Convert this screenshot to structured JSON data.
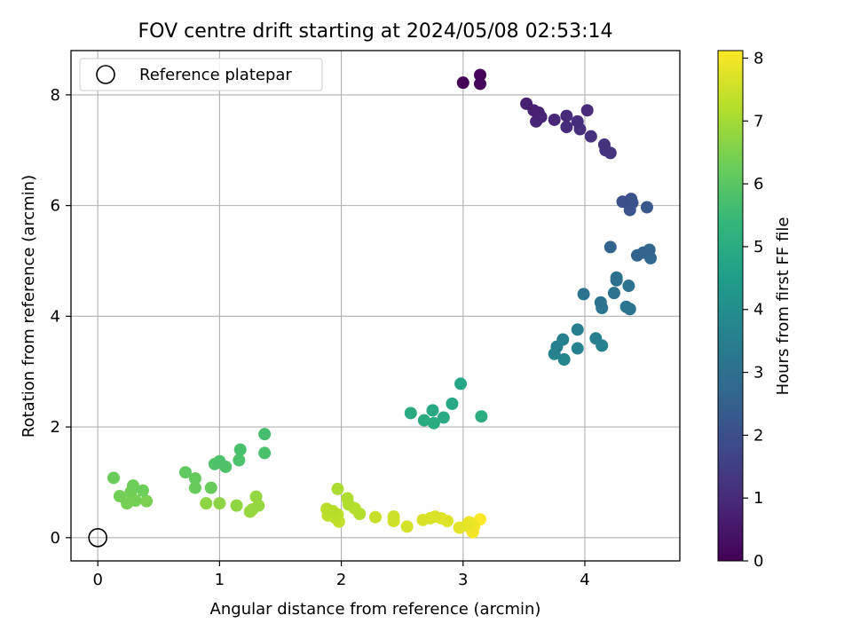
{
  "chart_data": {
    "type": "scatter",
    "title": "FOV centre drift starting at 2024/05/08 02:53:14",
    "xlabel": "Angular distance from reference (arcmin)",
    "ylabel": "Rotation from reference (arcmin)",
    "xlim": [
      -0.22,
      4.78
    ],
    "ylim": [
      -0.42,
      8.8
    ],
    "xticks": [
      0,
      1,
      2,
      3,
      4
    ],
    "yticks": [
      0,
      2,
      4,
      6,
      8
    ],
    "grid": true,
    "legend": {
      "placement": "top-left",
      "entries": [
        "Reference platepar"
      ]
    },
    "reference_point": {
      "x": 0,
      "y": 0
    },
    "colorbar": {
      "label": "Hours from first FF file",
      "range": [
        0,
        8.12
      ],
      "ticks": [
        0,
        1,
        2,
        3,
        4,
        5,
        6,
        7,
        8
      ],
      "colormap": "viridis"
    },
    "colormap_stops": [
      "#440154",
      "#482878",
      "#3e4989",
      "#31688e",
      "#26828e",
      "#1f9e89",
      "#35b779",
      "#6ece58",
      "#b5de2b",
      "#fde725"
    ],
    "points": [
      {
        "x": 3.0,
        "y": 8.22,
        "c": 0.05
      },
      {
        "x": 3.14,
        "y": 8.36,
        "c": 0.1
      },
      {
        "x": 3.14,
        "y": 8.2,
        "c": 0.15
      },
      {
        "x": 3.52,
        "y": 7.84,
        "c": 0.7
      },
      {
        "x": 3.58,
        "y": 7.72,
        "c": 0.75
      },
      {
        "x": 3.62,
        "y": 7.68,
        "c": 0.8
      },
      {
        "x": 3.64,
        "y": 7.6,
        "c": 0.85
      },
      {
        "x": 3.6,
        "y": 7.52,
        "c": 0.88
      },
      {
        "x": 3.75,
        "y": 7.55,
        "c": 0.9
      },
      {
        "x": 3.85,
        "y": 7.62,
        "c": 0.95
      },
      {
        "x": 3.85,
        "y": 7.42,
        "c": 1.0
      },
      {
        "x": 3.94,
        "y": 7.52,
        "c": 1.05
      },
      {
        "x": 3.96,
        "y": 7.38,
        "c": 1.1
      },
      {
        "x": 4.02,
        "y": 7.72,
        "c": 1.0
      },
      {
        "x": 4.05,
        "y": 7.25,
        "c": 1.15
      },
      {
        "x": 4.16,
        "y": 7.1,
        "c": 1.2
      },
      {
        "x": 4.17,
        "y": 7.0,
        "c": 1.25
      },
      {
        "x": 4.21,
        "y": 6.95,
        "c": 1.3
      },
      {
        "x": 4.31,
        "y": 6.07,
        "c": 2.0
      },
      {
        "x": 4.38,
        "y": 6.12,
        "c": 2.05
      },
      {
        "x": 4.39,
        "y": 6.05,
        "c": 2.1
      },
      {
        "x": 4.37,
        "y": 5.92,
        "c": 2.15
      },
      {
        "x": 4.51,
        "y": 5.97,
        "c": 2.2
      },
      {
        "x": 4.21,
        "y": 5.25,
        "c": 2.6
      },
      {
        "x": 4.43,
        "y": 5.1,
        "c": 2.6
      },
      {
        "x": 4.48,
        "y": 5.15,
        "c": 2.65
      },
      {
        "x": 4.53,
        "y": 5.2,
        "c": 2.65
      },
      {
        "x": 4.54,
        "y": 5.05,
        "c": 2.7
      },
      {
        "x": 4.26,
        "y": 4.65,
        "c": 3.0
      },
      {
        "x": 4.26,
        "y": 4.7,
        "c": 3.0
      },
      {
        "x": 4.24,
        "y": 4.42,
        "c": 3.05
      },
      {
        "x": 4.36,
        "y": 4.55,
        "c": 3.05
      },
      {
        "x": 3.99,
        "y": 4.4,
        "c": 3.1
      },
      {
        "x": 4.13,
        "y": 4.25,
        "c": 3.1
      },
      {
        "x": 4.14,
        "y": 4.15,
        "c": 3.15
      },
      {
        "x": 4.34,
        "y": 4.17,
        "c": 3.15
      },
      {
        "x": 4.37,
        "y": 4.13,
        "c": 3.2
      },
      {
        "x": 3.94,
        "y": 3.76,
        "c": 3.5
      },
      {
        "x": 4.09,
        "y": 3.6,
        "c": 3.5
      },
      {
        "x": 3.82,
        "y": 3.58,
        "c": 3.55
      },
      {
        "x": 3.77,
        "y": 3.45,
        "c": 3.55
      },
      {
        "x": 3.94,
        "y": 3.42,
        "c": 3.6
      },
      {
        "x": 4.14,
        "y": 3.47,
        "c": 3.6
      },
      {
        "x": 3.75,
        "y": 3.32,
        "c": 3.65
      },
      {
        "x": 3.83,
        "y": 3.22,
        "c": 3.7
      },
      {
        "x": 2.98,
        "y": 2.78,
        "c": 4.8
      },
      {
        "x": 2.91,
        "y": 2.42,
        "c": 4.85
      },
      {
        "x": 2.75,
        "y": 2.3,
        "c": 4.9
      },
      {
        "x": 2.57,
        "y": 2.25,
        "c": 4.95
      },
      {
        "x": 2.84,
        "y": 2.17,
        "c": 4.95
      },
      {
        "x": 2.68,
        "y": 2.12,
        "c": 5.0
      },
      {
        "x": 2.76,
        "y": 2.07,
        "c": 5.0
      },
      {
        "x": 3.15,
        "y": 2.19,
        "c": 5.05
      },
      {
        "x": 1.37,
        "y": 1.87,
        "c": 5.7
      },
      {
        "x": 1.17,
        "y": 1.59,
        "c": 5.75
      },
      {
        "x": 1.37,
        "y": 1.53,
        "c": 5.75
      },
      {
        "x": 1.16,
        "y": 1.4,
        "c": 5.8
      },
      {
        "x": 1.0,
        "y": 1.38,
        "c": 5.8
      },
      {
        "x": 0.96,
        "y": 1.33,
        "c": 5.85
      },
      {
        "x": 1.05,
        "y": 1.28,
        "c": 5.85
      },
      {
        "x": 0.72,
        "y": 1.18,
        "c": 6.1
      },
      {
        "x": 0.8,
        "y": 1.07,
        "c": 6.15
      },
      {
        "x": 0.8,
        "y": 0.9,
        "c": 6.2
      },
      {
        "x": 0.93,
        "y": 0.9,
        "c": 6.2
      },
      {
        "x": 0.13,
        "y": 1.08,
        "c": 6.25
      },
      {
        "x": 0.29,
        "y": 0.94,
        "c": 6.3
      },
      {
        "x": 0.37,
        "y": 0.85,
        "c": 6.3
      },
      {
        "x": 0.27,
        "y": 0.82,
        "c": 6.35
      },
      {
        "x": 0.18,
        "y": 0.75,
        "c": 6.35
      },
      {
        "x": 0.31,
        "y": 0.67,
        "c": 6.4
      },
      {
        "x": 0.24,
        "y": 0.62,
        "c": 6.4
      },
      {
        "x": 0.4,
        "y": 0.66,
        "c": 6.45
      },
      {
        "x": 0.89,
        "y": 0.62,
        "c": 6.7
      },
      {
        "x": 1.0,
        "y": 0.62,
        "c": 6.7
      },
      {
        "x": 1.14,
        "y": 0.58,
        "c": 6.75
      },
      {
        "x": 1.3,
        "y": 0.74,
        "c": 6.8
      },
      {
        "x": 1.32,
        "y": 0.58,
        "c": 6.8
      },
      {
        "x": 1.27,
        "y": 0.51,
        "c": 6.85
      },
      {
        "x": 1.25,
        "y": 0.47,
        "c": 6.85
      },
      {
        "x": 1.97,
        "y": 0.88,
        "c": 7.1
      },
      {
        "x": 2.05,
        "y": 0.71,
        "c": 7.15
      },
      {
        "x": 2.06,
        "y": 0.6,
        "c": 7.15
      },
      {
        "x": 2.11,
        "y": 0.53,
        "c": 7.2
      },
      {
        "x": 2.15,
        "y": 0.43,
        "c": 7.2
      },
      {
        "x": 1.88,
        "y": 0.52,
        "c": 7.25
      },
      {
        "x": 1.93,
        "y": 0.48,
        "c": 7.25
      },
      {
        "x": 1.97,
        "y": 0.42,
        "c": 7.3
      },
      {
        "x": 1.89,
        "y": 0.4,
        "c": 7.3
      },
      {
        "x": 1.95,
        "y": 0.36,
        "c": 7.35
      },
      {
        "x": 1.98,
        "y": 0.29,
        "c": 7.4
      },
      {
        "x": 2.28,
        "y": 0.37,
        "c": 7.45
      },
      {
        "x": 2.43,
        "y": 0.38,
        "c": 7.5
      },
      {
        "x": 2.43,
        "y": 0.3,
        "c": 7.55
      },
      {
        "x": 2.54,
        "y": 0.2,
        "c": 7.6
      },
      {
        "x": 2.67,
        "y": 0.32,
        "c": 7.65
      },
      {
        "x": 2.73,
        "y": 0.35,
        "c": 7.65
      },
      {
        "x": 2.77,
        "y": 0.38,
        "c": 7.7
      },
      {
        "x": 2.82,
        "y": 0.35,
        "c": 7.75
      },
      {
        "x": 2.87,
        "y": 0.3,
        "c": 7.75
      },
      {
        "x": 2.97,
        "y": 0.18,
        "c": 7.8
      },
      {
        "x": 3.03,
        "y": 0.22,
        "c": 7.85
      },
      {
        "x": 3.05,
        "y": 0.28,
        "c": 7.9
      },
      {
        "x": 3.09,
        "y": 0.2,
        "c": 7.95
      },
      {
        "x": 3.07,
        "y": 0.15,
        "c": 8.0
      },
      {
        "x": 3.08,
        "y": 0.1,
        "c": 8.05
      },
      {
        "x": 3.14,
        "y": 0.33,
        "c": 8.1
      }
    ]
  }
}
